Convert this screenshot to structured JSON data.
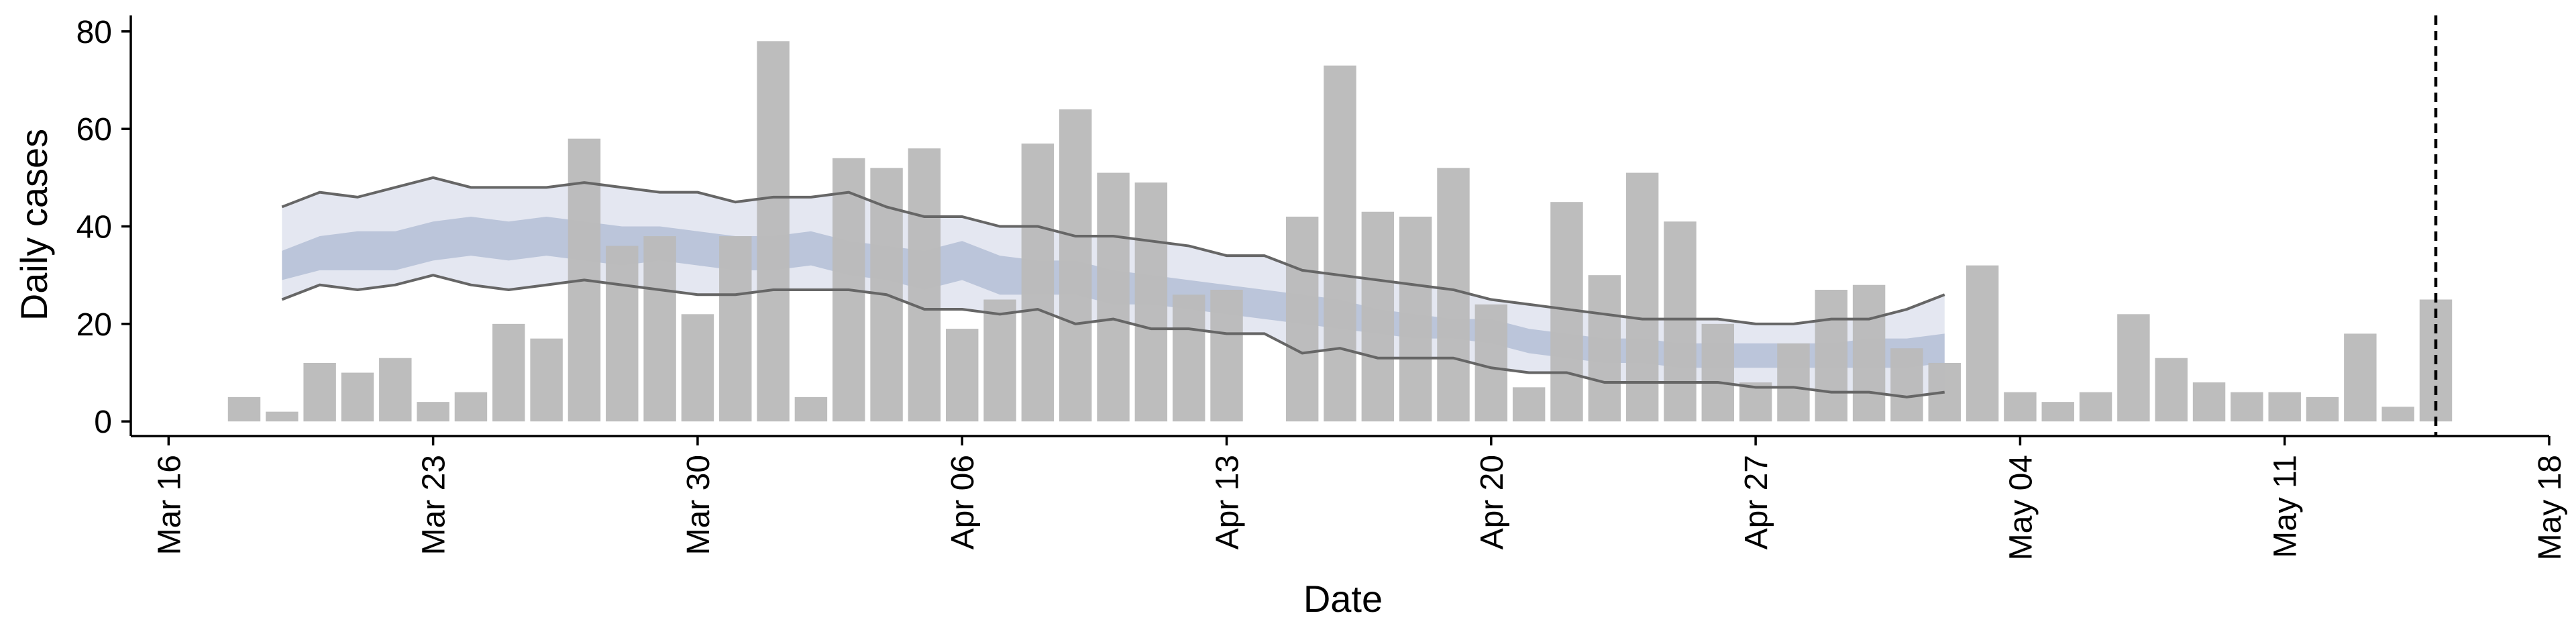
{
  "chart_data": {
    "type": "bar",
    "xlabel": "Date",
    "ylabel": "Daily cases",
    "ylim": [
      -3,
      83
    ],
    "xlim": [
      "2020-03-15",
      "2020-05-18"
    ],
    "yticks": [
      0,
      20,
      40,
      60,
      80
    ],
    "xticks": [
      "Mar 16",
      "Mar 23",
      "Mar 30",
      "Apr 06",
      "Apr 13",
      "Apr 20",
      "Apr 27",
      "May 04",
      "May 11",
      "May 18"
    ],
    "xtick_dates": [
      "2020-03-16",
      "2020-03-23",
      "2020-03-30",
      "2020-04-06",
      "2020-04-13",
      "2020-04-20",
      "2020-04-27",
      "2020-05-04",
      "2020-05-11",
      "2020-05-18"
    ],
    "grid": false,
    "vline_date": "2020-05-15",
    "colors": {
      "bars": "#bababa",
      "inner_band": "#aab6d0",
      "outer_band": "#dfe3ef",
      "bound_lines": "#666666",
      "vline": "#000000"
    },
    "daily_cases": {
      "dates": [
        "2020-03-18",
        "2020-03-19",
        "2020-03-20",
        "2020-03-21",
        "2020-03-22",
        "2020-03-23",
        "2020-03-24",
        "2020-03-25",
        "2020-03-26",
        "2020-03-27",
        "2020-03-28",
        "2020-03-29",
        "2020-03-30",
        "2020-03-31",
        "2020-04-01",
        "2020-04-02",
        "2020-04-03",
        "2020-04-04",
        "2020-04-05",
        "2020-04-06",
        "2020-04-07",
        "2020-04-08",
        "2020-04-09",
        "2020-04-10",
        "2020-04-11",
        "2020-04-12",
        "2020-04-13",
        "2020-04-15",
        "2020-04-16",
        "2020-04-17",
        "2020-04-18",
        "2020-04-19",
        "2020-04-20",
        "2020-04-21",
        "2020-04-22",
        "2020-04-23",
        "2020-04-24",
        "2020-04-25",
        "2020-04-26",
        "2020-04-27",
        "2020-04-28",
        "2020-04-29",
        "2020-04-30",
        "2020-05-01",
        "2020-05-02",
        "2020-05-03",
        "2020-05-04",
        "2020-05-05",
        "2020-05-06",
        "2020-05-07",
        "2020-05-08",
        "2020-05-09",
        "2020-05-10",
        "2020-05-11",
        "2020-05-12",
        "2020-05-13",
        "2020-05-14",
        "2020-05-15"
      ],
      "values": [
        5,
        2,
        12,
        10,
        13,
        4,
        6,
        20,
        17,
        58,
        36,
        38,
        22,
        38,
        78,
        5,
        54,
        52,
        56,
        19,
        25,
        57,
        64,
        51,
        49,
        26,
        27,
        42,
        73,
        43,
        42,
        52,
        24,
        7,
        45,
        30,
        51,
        41,
        20,
        8,
        16,
        27,
        28,
        15,
        12,
        32,
        6,
        4,
        6,
        22,
        13,
        8,
        6,
        6,
        5,
        18,
        3,
        25
      ]
    },
    "bands": {
      "dates": [
        "2020-03-19",
        "2020-03-20",
        "2020-03-21",
        "2020-03-22",
        "2020-03-23",
        "2020-03-24",
        "2020-03-25",
        "2020-03-26",
        "2020-03-27",
        "2020-03-28",
        "2020-03-29",
        "2020-03-30",
        "2020-03-31",
        "2020-04-01",
        "2020-04-02",
        "2020-04-03",
        "2020-04-04",
        "2020-04-05",
        "2020-04-06",
        "2020-04-07",
        "2020-04-08",
        "2020-04-09",
        "2020-04-10",
        "2020-04-11",
        "2020-04-12",
        "2020-04-13",
        "2020-04-14",
        "2020-04-15",
        "2020-04-16",
        "2020-04-17",
        "2020-04-18",
        "2020-04-19",
        "2020-04-20",
        "2020-04-21",
        "2020-04-22",
        "2020-04-23",
        "2020-04-24",
        "2020-04-25",
        "2020-04-26",
        "2020-04-27",
        "2020-04-28",
        "2020-04-29",
        "2020-04-30",
        "2020-05-01",
        "2020-05-02"
      ],
      "upper_outer": [
        44,
        47,
        46,
        48,
        50,
        48,
        48,
        48,
        49,
        48,
        47,
        47,
        45,
        46,
        46,
        47,
        44,
        42,
        42,
        40,
        40,
        38,
        38,
        37,
        36,
        34,
        34,
        31,
        30,
        29,
        28,
        27,
        25,
        24,
        23,
        22,
        21,
        21,
        21,
        20,
        20,
        21,
        21,
        23,
        26
      ],
      "upper_inner": [
        35,
        38,
        39,
        39,
        41,
        42,
        41,
        42,
        41,
        40,
        40,
        39,
        38,
        38,
        39,
        37,
        36,
        35,
        37,
        34,
        33,
        33,
        31,
        30,
        29,
        28,
        27,
        26,
        25,
        23,
        22,
        21,
        21,
        19,
        18,
        17,
        17,
        16,
        16,
        16,
        16,
        16,
        17,
        17,
        18
      ],
      "lower_inner": [
        29,
        31,
        31,
        31,
        33,
        34,
        33,
        34,
        33,
        32,
        33,
        32,
        31,
        31,
        32,
        30,
        29,
        27,
        29,
        26,
        26,
        26,
        24,
        24,
        23,
        22,
        21,
        20,
        19,
        18,
        17,
        17,
        16,
        14,
        13,
        12,
        12,
        11,
        11,
        11,
        11,
        11,
        11,
        11,
        12
      ],
      "lower_outer": [
        25,
        28,
        27,
        28,
        30,
        28,
        27,
        28,
        29,
        28,
        27,
        26,
        26,
        27,
        27,
        27,
        26,
        23,
        23,
        22,
        23,
        20,
        21,
        19,
        19,
        18,
        18,
        14,
        15,
        13,
        13,
        13,
        11,
        10,
        10,
        8,
        8,
        8,
        8,
        7,
        7,
        6,
        6,
        5,
        6
      ]
    }
  }
}
